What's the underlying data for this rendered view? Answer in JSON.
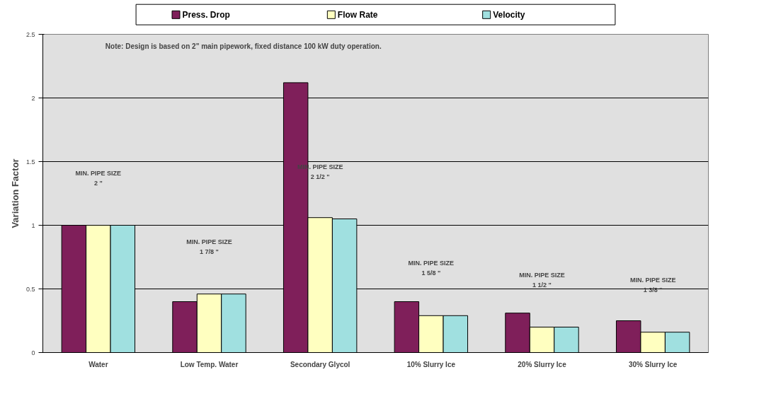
{
  "chart_data": {
    "type": "bar",
    "categories": [
      "Water",
      "Low Temp. Water",
      "Secondary Glycol",
      "10% Slurry Ice",
      "20% Slurry Ice",
      "30% Slurry Ice"
    ],
    "series": [
      {
        "name": "Press. Drop",
        "color": "#7f1f5a",
        "values": [
          1.0,
          0.4,
          2.12,
          0.4,
          0.31,
          0.25
        ]
      },
      {
        "name": "Flow Rate",
        "color": "#ffffc0",
        "values": [
          1.0,
          0.46,
          1.06,
          0.29,
          0.2,
          0.16
        ]
      },
      {
        "name": "Velocity",
        "color": "#a0e0e0",
        "values": [
          1.0,
          0.46,
          1.05,
          0.29,
          0.2,
          0.16
        ]
      }
    ],
    "ylabel": "Variation Factor",
    "ylim": [
      0,
      2.5
    ],
    "yticks": [
      0,
      0.5,
      1,
      1.5,
      2,
      2.5
    ],
    "grid": "y",
    "legend": "top",
    "annotations": [
      "Note:  Design is based on 2\" main pipework, fixed distance 100 kW duty operation.",
      "MIN. PIPE SIZE\n2 \"",
      "MIN. PIPE SIZE\n1 7/8 \"",
      "MIN. PIPE SIZE\n2 1/2 \"",
      "MIN. PIPE SIZE\n1 5/8 \"",
      "MIN. PIPE SIZE\n1 1/2 \"",
      "MIN. PIPE SIZE\n1 3/8 \""
    ]
  }
}
